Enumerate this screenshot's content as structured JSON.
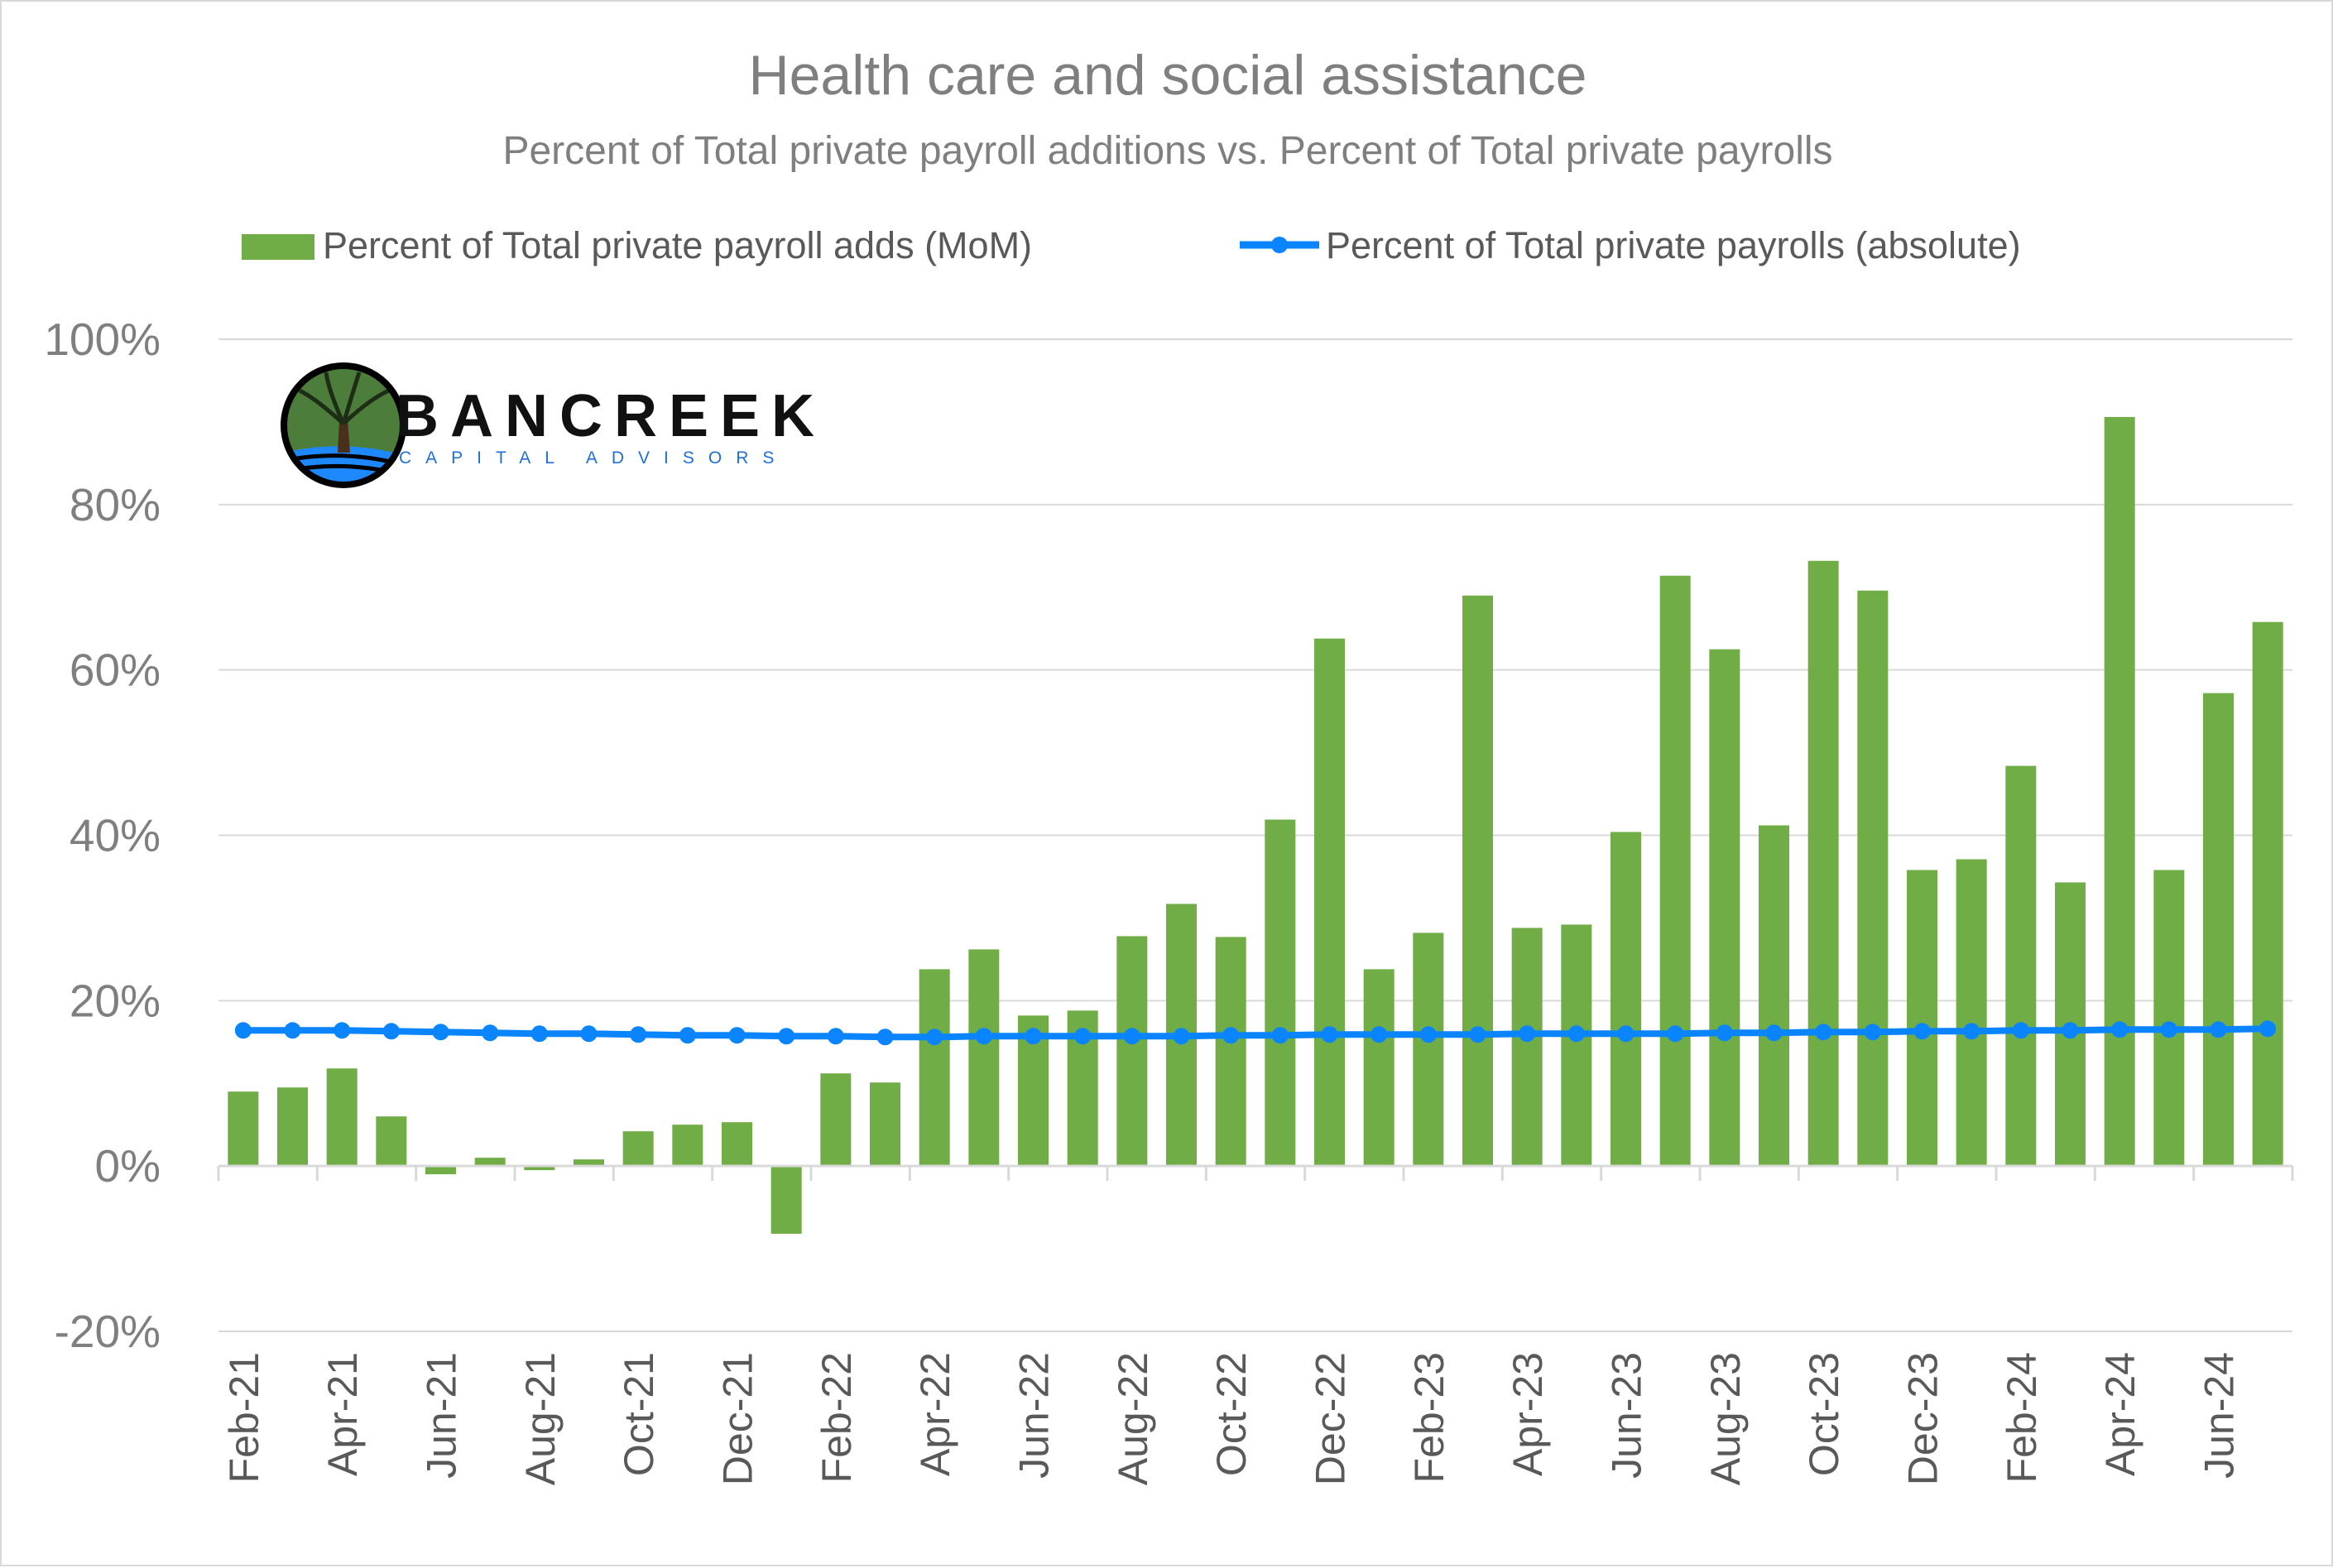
{
  "chart_data": {
    "type": "bar+line",
    "title": "Health care and social assistance",
    "subtitle": "Percent of Total private payroll additions vs. Percent of Total private payrolls",
    "y_ticks": [
      "-20%",
      "0%",
      "20%",
      "40%",
      "60%",
      "80%",
      "100%"
    ],
    "ylim": [
      -20,
      100
    ],
    "grid": true,
    "legend_position": "top",
    "x": [
      "Feb-21",
      "Mar-21",
      "Apr-21",
      "May-21",
      "Jun-21",
      "Jul-21",
      "Aug-21",
      "Sep-21",
      "Oct-21",
      "Nov-21",
      "Dec-21",
      "Jan-22",
      "Feb-22",
      "Mar-22",
      "Apr-22",
      "May-22",
      "Jun-22",
      "Jul-22",
      "Aug-22",
      "Sep-22",
      "Oct-22",
      "Nov-22",
      "Dec-22",
      "Jan-23",
      "Feb-23",
      "Mar-23",
      "Apr-23",
      "May-23",
      "Jun-23",
      "Jul-23",
      "Aug-23",
      "Sep-23",
      "Oct-23",
      "Nov-23",
      "Dec-23",
      "Jan-24",
      "Feb-24",
      "Mar-24",
      "Apr-24",
      "May-24",
      "Jun-24",
      "Jul-24"
    ],
    "x_tick_labels": [
      "Feb-21",
      "Apr-21",
      "Jun-21",
      "Aug-21",
      "Oct-21",
      "Dec-21",
      "Feb-22",
      "Apr-22",
      "Jun-22",
      "Aug-22",
      "Oct-22",
      "Dec-22",
      "Feb-23",
      "Apr-23",
      "Jun-23",
      "Aug-23",
      "Oct-23",
      "Dec-23",
      "Feb-24",
      "Apr-24",
      "Jun-24"
    ],
    "series": [
      {
        "name": "Percent of Total private payroll adds (MoM)",
        "type": "bar",
        "color": "#70ad47",
        "values": [
          9,
          9.5,
          11.8,
          6,
          -1,
          1,
          -0.5,
          0.8,
          4.2,
          5,
          5.3,
          -8.2,
          11.2,
          10.1,
          23.8,
          26.2,
          18.2,
          18.8,
          27.8,
          31.7,
          27.7,
          41.9,
          63.8,
          23.8,
          28.2,
          69,
          28.8,
          29.2,
          40.4,
          71.4,
          62.5,
          41.2,
          73.2,
          69.6,
          35.8,
          37.1,
          48.4,
          34.3,
          90.6,
          35.8,
          57.2,
          65.8
        ]
      },
      {
        "name": "Percent of Total private payrolls (absolute)",
        "type": "line",
        "color": "#0a84ff",
        "values": [
          16.4,
          16.4,
          16.4,
          16.3,
          16.2,
          16.1,
          16.0,
          16.0,
          15.9,
          15.8,
          15.8,
          15.7,
          15.7,
          15.6,
          15.6,
          15.7,
          15.7,
          15.7,
          15.7,
          15.7,
          15.8,
          15.8,
          15.9,
          15.9,
          15.9,
          15.9,
          16.0,
          16.0,
          16.0,
          16.0,
          16.1,
          16.1,
          16.2,
          16.2,
          16.3,
          16.3,
          16.4,
          16.4,
          16.5,
          16.5,
          16.5,
          16.6
        ]
      }
    ]
  },
  "logo": {
    "name": "BANCREEK",
    "tagline": "CAPITAL ADVISORS"
  }
}
